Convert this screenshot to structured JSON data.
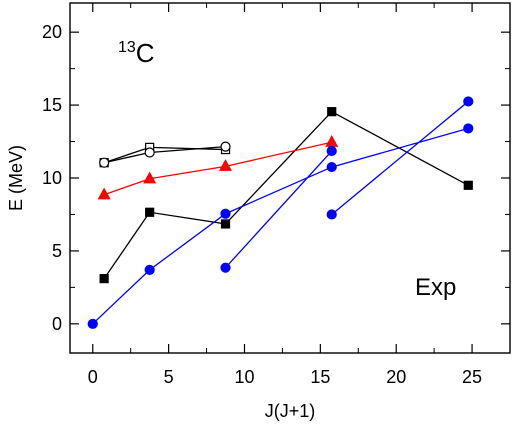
{
  "chart_data": {
    "type": "scatter",
    "title": "",
    "xlabel": "J(J+1)",
    "ylabel": "E (MeV)",
    "xlim": [
      -1.5,
      27.5
    ],
    "ylim": [
      -2,
      22
    ],
    "xticks": [
      0,
      5,
      10,
      15,
      20,
      25
    ],
    "yticks": [
      0,
      5,
      10,
      15,
      20
    ],
    "grid": false,
    "annotations": {
      "nucleus_mass": "13",
      "nucleus_symbol": "C",
      "label": "Exp"
    },
    "series": [
      {
        "color": "#000000",
        "marker": "square",
        "filled": true,
        "x": [
          0.75,
          3.75,
          8.75,
          15.75,
          24.75
        ],
        "y": [
          3.1,
          7.65,
          6.85,
          14.55,
          9.5
        ]
      },
      {
        "color": "#000000",
        "marker": "square",
        "filled": false,
        "x": [
          0.75,
          3.75,
          8.75
        ],
        "y": [
          11.05,
          12.1,
          11.95
        ]
      },
      {
        "color": "#000000",
        "marker": "circle",
        "filled": false,
        "x": [
          0.75,
          3.75,
          8.75
        ],
        "y": [
          11.05,
          11.75,
          12.15
        ]
      },
      {
        "color": "#ff0000",
        "marker": "triangle",
        "filled": true,
        "x": [
          0.75,
          3.75,
          8.75,
          15.75
        ],
        "y": [
          8.85,
          9.95,
          10.8,
          12.45
        ]
      },
      {
        "color": "#0000ff",
        "marker": "circle",
        "filled": true,
        "x": [
          0.0,
          3.75,
          8.75,
          15.75,
          24.75
        ],
        "y": [
          0.0,
          3.7,
          7.55,
          10.75,
          13.4
        ]
      },
      {
        "color": "#0000ff",
        "marker": "circle",
        "filled": true,
        "x": [
          8.75,
          15.75
        ],
        "y": [
          3.85,
          11.85
        ]
      },
      {
        "color": "#0000ff",
        "marker": "circle",
        "filled": true,
        "x": [
          15.75,
          24.75
        ],
        "y": [
          7.5,
          15.25
        ]
      }
    ]
  }
}
